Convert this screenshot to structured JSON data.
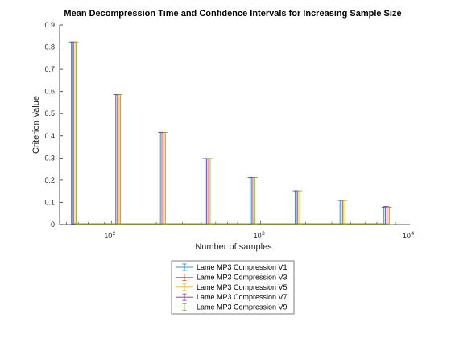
{
  "chart_data": {
    "type": "errorbar",
    "title": "Mean Decompression Time and Confidence Intervals for Increasing Sample Size",
    "xlabel": "Number of samples",
    "ylabel": "Criterion Value",
    "xscale": "log",
    "xlim": [
      45,
      10000
    ],
    "ylim": [
      0,
      0.9
    ],
    "grid": false,
    "legend_position": "bottom-center, outside plot",
    "x_ticks": [
      {
        "value": 100,
        "base": "10",
        "exp": "2"
      },
      {
        "value": 1000,
        "base": "10",
        "exp": "3"
      },
      {
        "value": 10000,
        "base": "10",
        "exp": "4"
      }
    ],
    "y_ticks": [
      {
        "value": 0,
        "label": "0"
      },
      {
        "value": 0.1,
        "label": "0.1"
      },
      {
        "value": 0.2,
        "label": "0.2"
      },
      {
        "value": 0.3,
        "label": "0.3"
      },
      {
        "value": 0.4,
        "label": "0.4"
      },
      {
        "value": 0.5,
        "label": "0.5"
      },
      {
        "value": 0.6,
        "label": "0.6"
      },
      {
        "value": 0.7,
        "label": "0.7"
      },
      {
        "value": 0.8,
        "label": "0.8"
      },
      {
        "value": 0.9,
        "label": "0.9"
      }
    ],
    "series": [
      {
        "name": "Lame MP3 Compression V1",
        "color": "#0072BD",
        "x": [
          54,
          107,
          213,
          425,
          850,
          1700,
          3400,
          6700
        ],
        "y": [
          0.003,
          0.003,
          0.003,
          0.003,
          0.003,
          0.003,
          0.003,
          0.003
        ],
        "err": [
          0.82,
          0.583,
          0.413,
          0.295,
          0.209,
          0.149,
          0.106,
          0.075
        ]
      },
      {
        "name": "Lame MP3 Compression V3",
        "color": "#D95319",
        "x": [
          56,
          111,
          222,
          443,
          885,
          1770,
          3540,
          7000
        ],
        "y": [
          0.003,
          0.003,
          0.003,
          0.003,
          0.003,
          0.003,
          0.003,
          0.003
        ],
        "err": [
          0.82,
          0.583,
          0.413,
          0.295,
          0.209,
          0.149,
          0.106,
          0.078
        ]
      },
      {
        "name": "Lame MP3 Compression V5",
        "color": "#EDB120",
        "x": [
          57,
          113,
          226,
          451,
          900,
          1800,
          3600,
          7150
        ],
        "y": [
          0.003,
          0.003,
          0.003,
          0.003,
          0.003,
          0.003,
          0.003,
          0.003
        ],
        "err": [
          0.82,
          0.583,
          0.413,
          0.295,
          0.209,
          0.149,
          0.106,
          0.075
        ]
      },
      {
        "name": "Lame MP3 Compression V7",
        "color": "#7E2F8E",
        "x": [
          55,
          109,
          218,
          434,
          867,
          1735,
          3470,
          6850
        ],
        "y": [
          0.003,
          0.003,
          0.003,
          0.003,
          0.003,
          0.003,
          0.003,
          0.003
        ],
        "err": [
          0.82,
          0.583,
          0.413,
          0.295,
          0.209,
          0.149,
          0.106,
          0.078
        ]
      },
      {
        "name": "Lame MP3 Compression V9",
        "color": "#77AC30",
        "x": [
          58,
          115,
          230,
          459,
          917,
          1835,
          3670,
          7300
        ],
        "y": [
          0.003,
          0.003,
          0.003,
          0.003,
          0.003,
          0.003,
          0.003,
          0.003
        ],
        "err": [
          0.82,
          0.583,
          0.413,
          0.295,
          0.209,
          0.149,
          0.106,
          0.075
        ]
      }
    ]
  }
}
